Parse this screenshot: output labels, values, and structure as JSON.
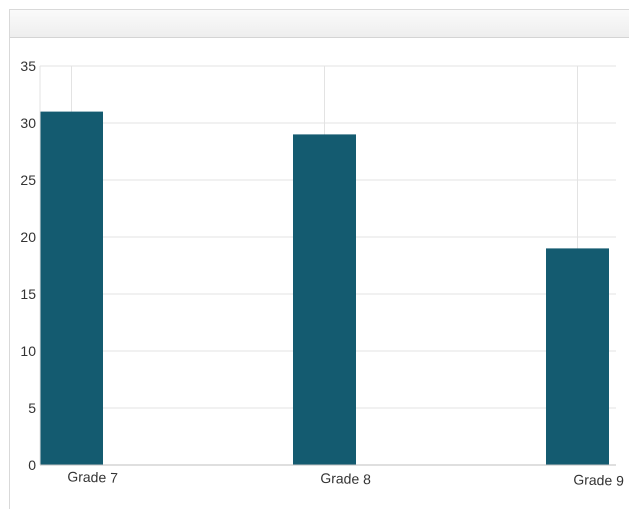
{
  "panel": {
    "title": ""
  },
  "colors": {
    "bar": "#145b70",
    "grid": "#e3e3e3",
    "axis": "#bfbfbf"
  },
  "chart_data": {
    "type": "bar",
    "title": "",
    "xlabel": "",
    "ylabel": "",
    "categories": [
      "Grade 7",
      "Grade 8",
      "Grade 9"
    ],
    "values": [
      31,
      29,
      19
    ],
    "ylim": [
      0,
      35
    ],
    "yticks": [
      0,
      5,
      10,
      15,
      20,
      25,
      30,
      35
    ],
    "grid": true,
    "legend": "none"
  }
}
